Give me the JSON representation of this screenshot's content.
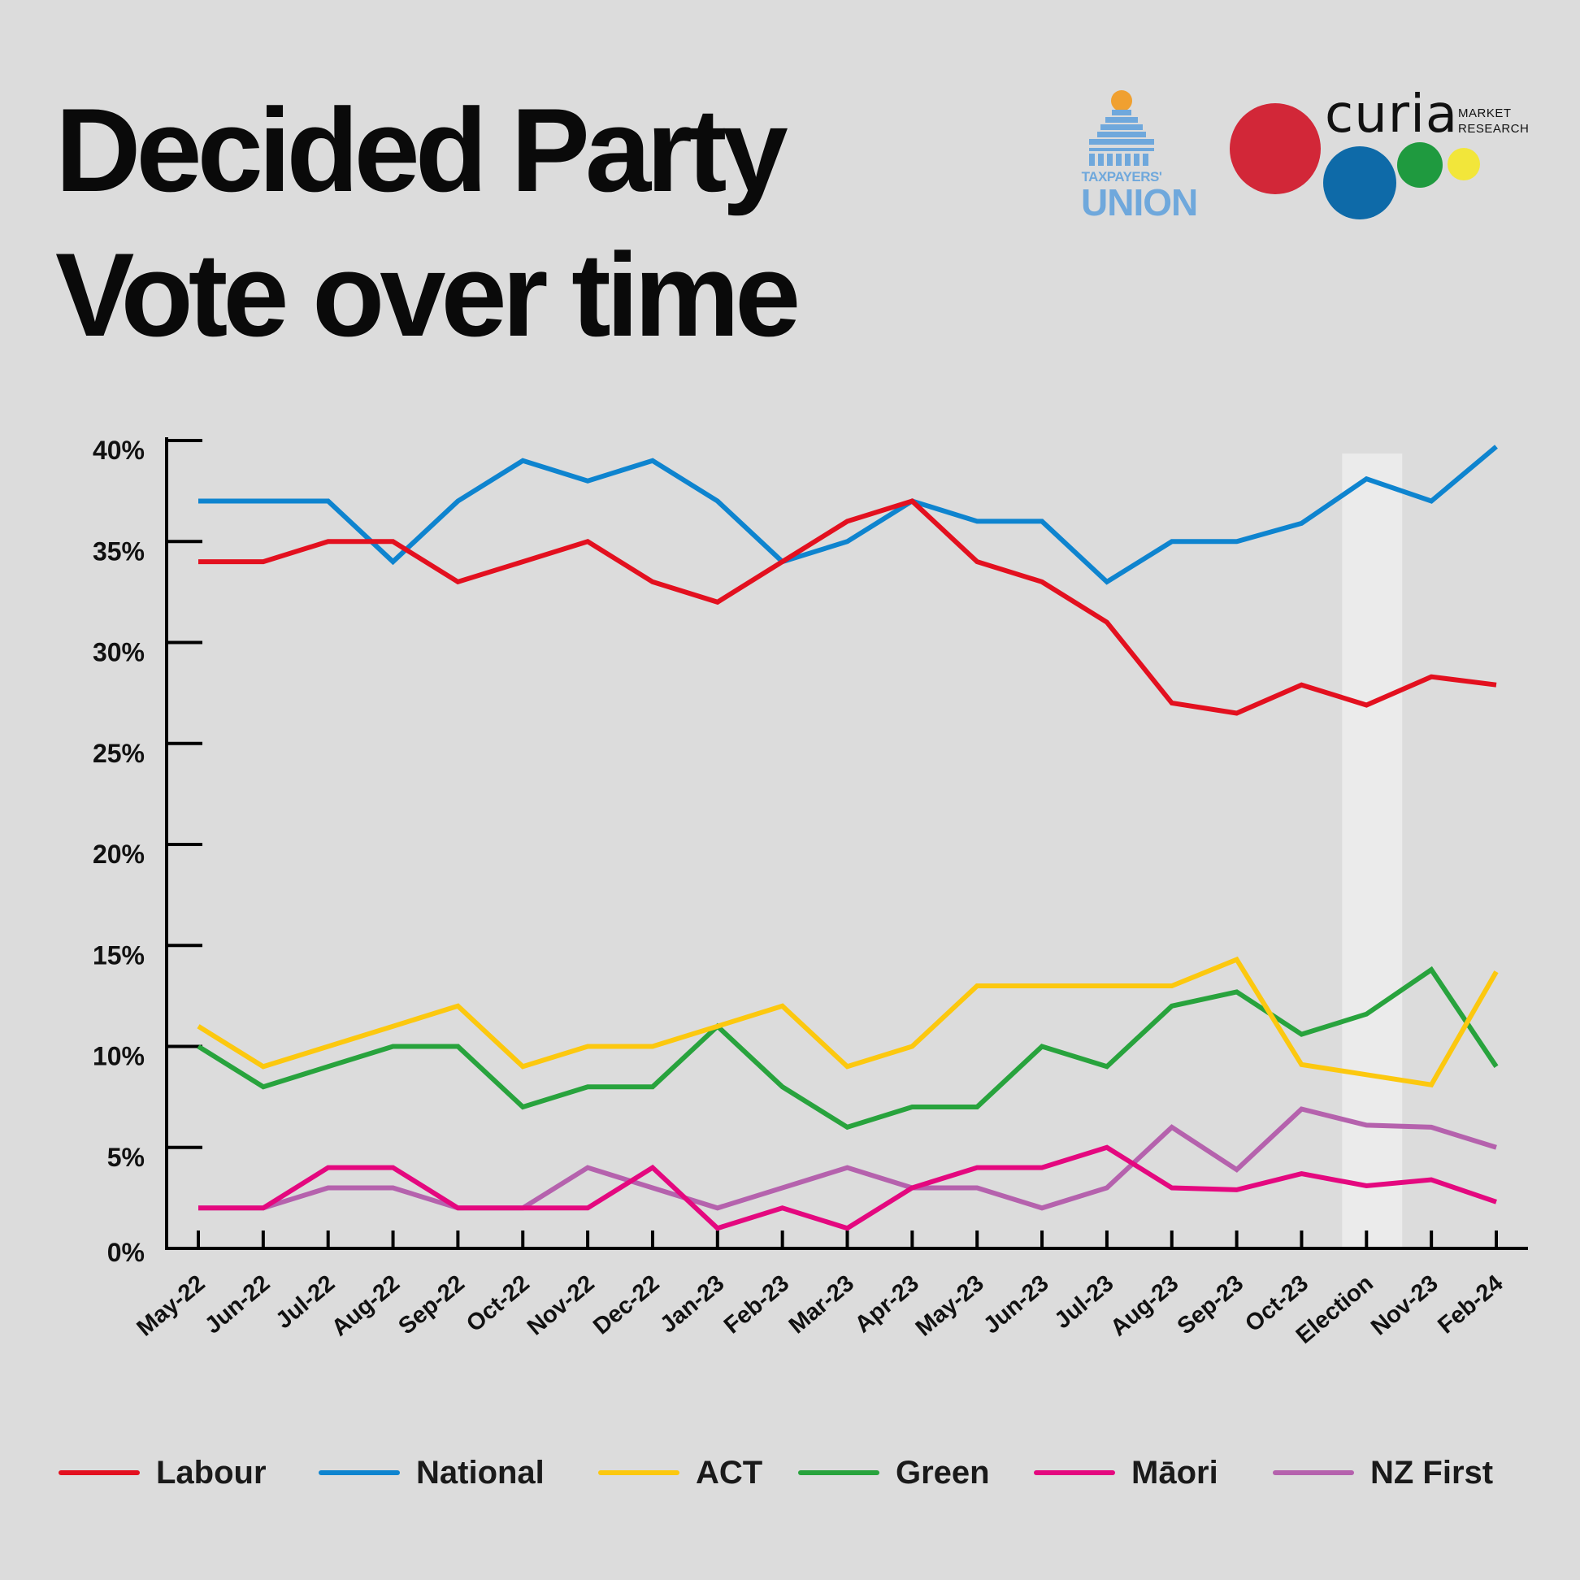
{
  "title": {
    "line1": "Decided Party",
    "line2": "Vote over time"
  },
  "logos": {
    "taxpayers_union": {
      "line1": "TAXPAYERS'",
      "line2": "UNION"
    },
    "curia": {
      "word": "curia",
      "sub1": "MARKET",
      "sub2": "RESEARCH"
    }
  },
  "colors": {
    "background": "#dcdcdc",
    "labour": "#e3101f",
    "national": "#0e84cf",
    "act": "#fcc80f",
    "green": "#28a33d",
    "maori": "#e4087f",
    "nzfirst": "#b562ad",
    "election_band": "#ebebeb"
  },
  "chart_data": {
    "type": "line",
    "title": "Decided Party Vote over time",
    "xlabel": "",
    "ylabel": "",
    "ylim": [
      0,
      40
    ],
    "yticks": [
      0,
      5,
      10,
      15,
      20,
      25,
      30,
      35,
      40
    ],
    "ytick_labels": [
      "0%",
      "5%",
      "10%",
      "15%",
      "20%",
      "25%",
      "30%",
      "35%",
      "40%"
    ],
    "categories": [
      "May-22",
      "Jun-22",
      "Jul-22",
      "Aug-22",
      "Sep-22",
      "Oct-22",
      "Nov-22",
      "Dec-22",
      "Jan-23",
      "Feb-23",
      "Mar-23",
      "Apr-23",
      "May-23",
      "Jun-23",
      "Jul-23",
      "Aug-23",
      "Sep-23",
      "Oct-23",
      "Election",
      "Nov-23",
      "Feb-24"
    ],
    "highlight_category": "Election",
    "legend_position": "bottom",
    "series": [
      {
        "name": "Labour",
        "color_key": "labour",
        "values": [
          34,
          34,
          35,
          35,
          33,
          34,
          35,
          33,
          32,
          34,
          36,
          37,
          34,
          33,
          31,
          27,
          26.5,
          27.9,
          26.9,
          28.3,
          27.9
        ]
      },
      {
        "name": "National",
        "color_key": "national",
        "values": [
          37,
          37,
          37,
          34,
          37,
          39,
          38,
          39,
          37,
          34,
          35,
          37,
          36,
          36,
          33,
          35,
          35,
          35.9,
          38.1,
          37,
          39.7
        ]
      },
      {
        "name": "ACT",
        "color_key": "act",
        "values": [
          11,
          9,
          10,
          11,
          12,
          9,
          10,
          10,
          11,
          12,
          9,
          10,
          13,
          13,
          13,
          13,
          14.3,
          9.1,
          8.6,
          8.1,
          13.7
        ]
      },
      {
        "name": "Green",
        "color_key": "green",
        "values": [
          10,
          8,
          9,
          10,
          10,
          7,
          8,
          8,
          11,
          8,
          6,
          7,
          7,
          10,
          9,
          12,
          12.7,
          10.6,
          11.6,
          13.8,
          9
        ]
      },
      {
        "name": "Māori",
        "color_key": "maori",
        "values": [
          2,
          2,
          4,
          4,
          2,
          2,
          2,
          4,
          1,
          2,
          1,
          3,
          4,
          4,
          5,
          3,
          2.9,
          3.7,
          3.1,
          3.4,
          2.3
        ]
      },
      {
        "name": "NZ First",
        "color_key": "nzfirst",
        "values": [
          2,
          2,
          3,
          3,
          2,
          2,
          4,
          3,
          2,
          3,
          4,
          3,
          3,
          2,
          3,
          6,
          3.9,
          6.9,
          6.1,
          6,
          5
        ]
      }
    ]
  }
}
